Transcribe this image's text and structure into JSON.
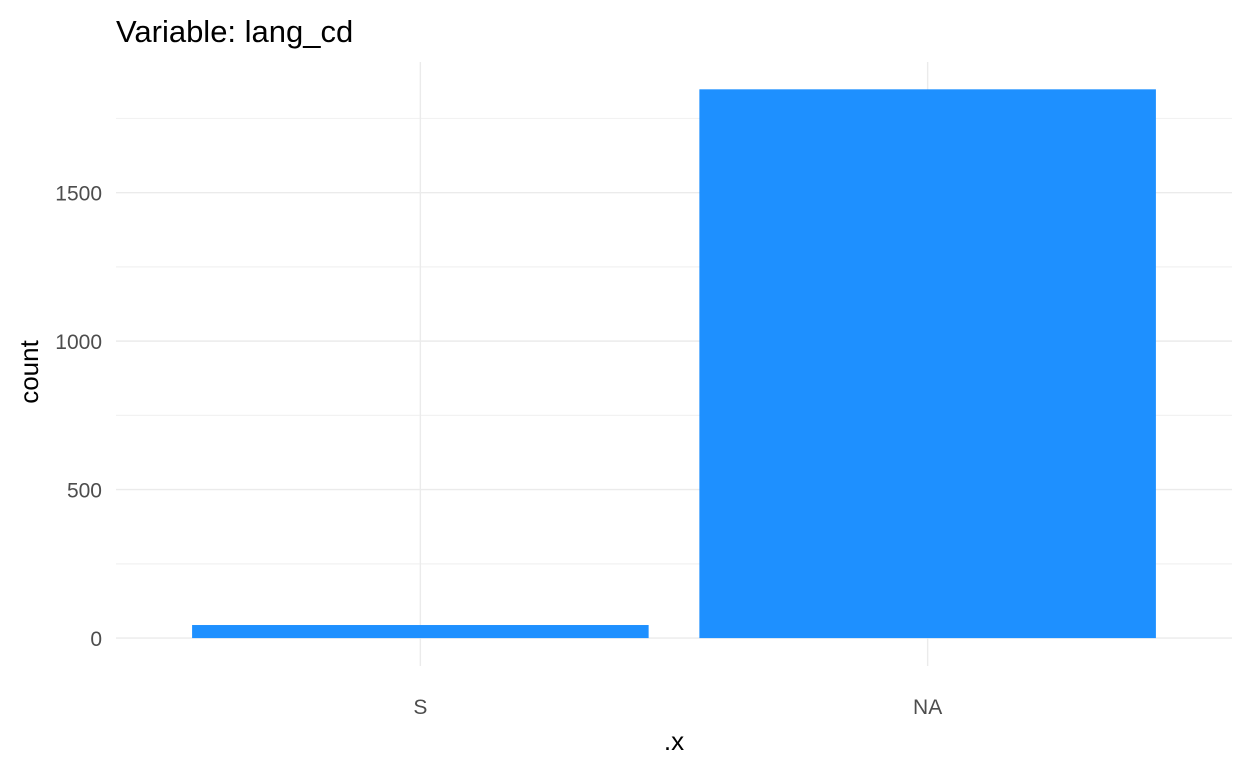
{
  "chart_data": {
    "type": "bar",
    "title": "Variable: lang_cd",
    "xlabel": ".x",
    "ylabel": "count",
    "categories": [
      "S",
      "NA"
    ],
    "values": [
      44,
      1848
    ],
    "ylim": [
      -94,
      1940
    ],
    "yticks": [
      0,
      500,
      1000,
      1500
    ],
    "ytick_labels": [
      "0",
      "500",
      "1000",
      "1500"
    ],
    "grid": true,
    "legend": "none",
    "bar_color": "#1E90FF",
    "grid_color": "#EBEBEB",
    "background": "#FFFFFF"
  }
}
